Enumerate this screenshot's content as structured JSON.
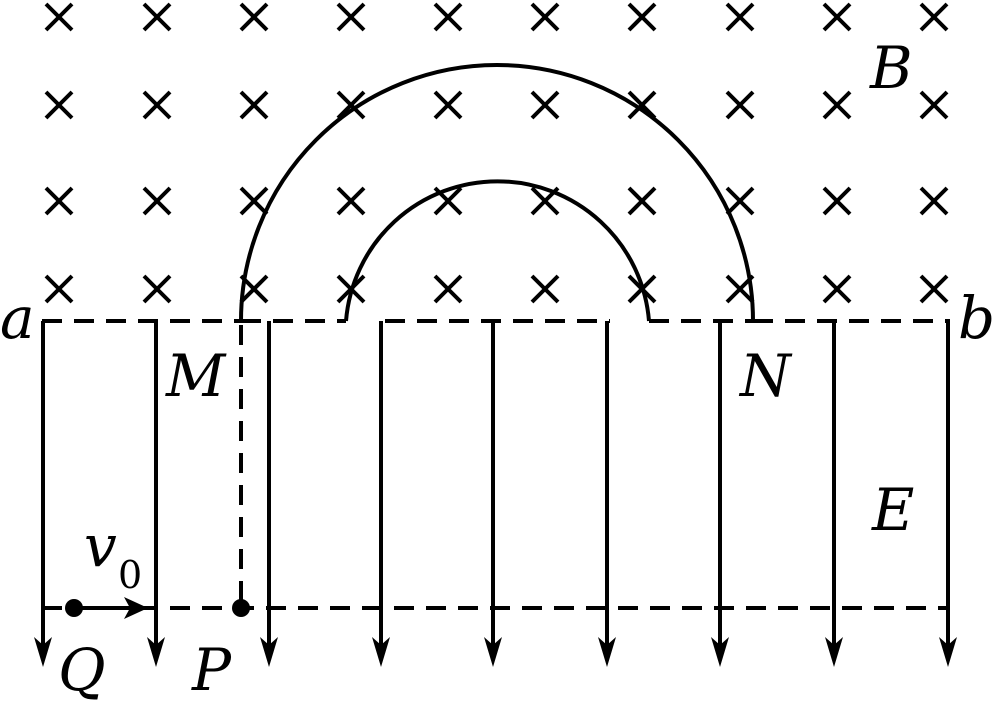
{
  "diagram": {
    "labels": {
      "a": "a",
      "b": "b",
      "M": "M",
      "N": "N",
      "B": "B",
      "E": "E",
      "Q": "Q",
      "P": "P",
      "v": "v",
      "v_sub": "0"
    },
    "magnetic_field": {
      "symbol": "×",
      "direction": "into-page"
    },
    "electric_field": {
      "direction": "down",
      "arrow_count": 9
    },
    "colors": {
      "ink": "#000000",
      "background": "#ffffff"
    }
  }
}
